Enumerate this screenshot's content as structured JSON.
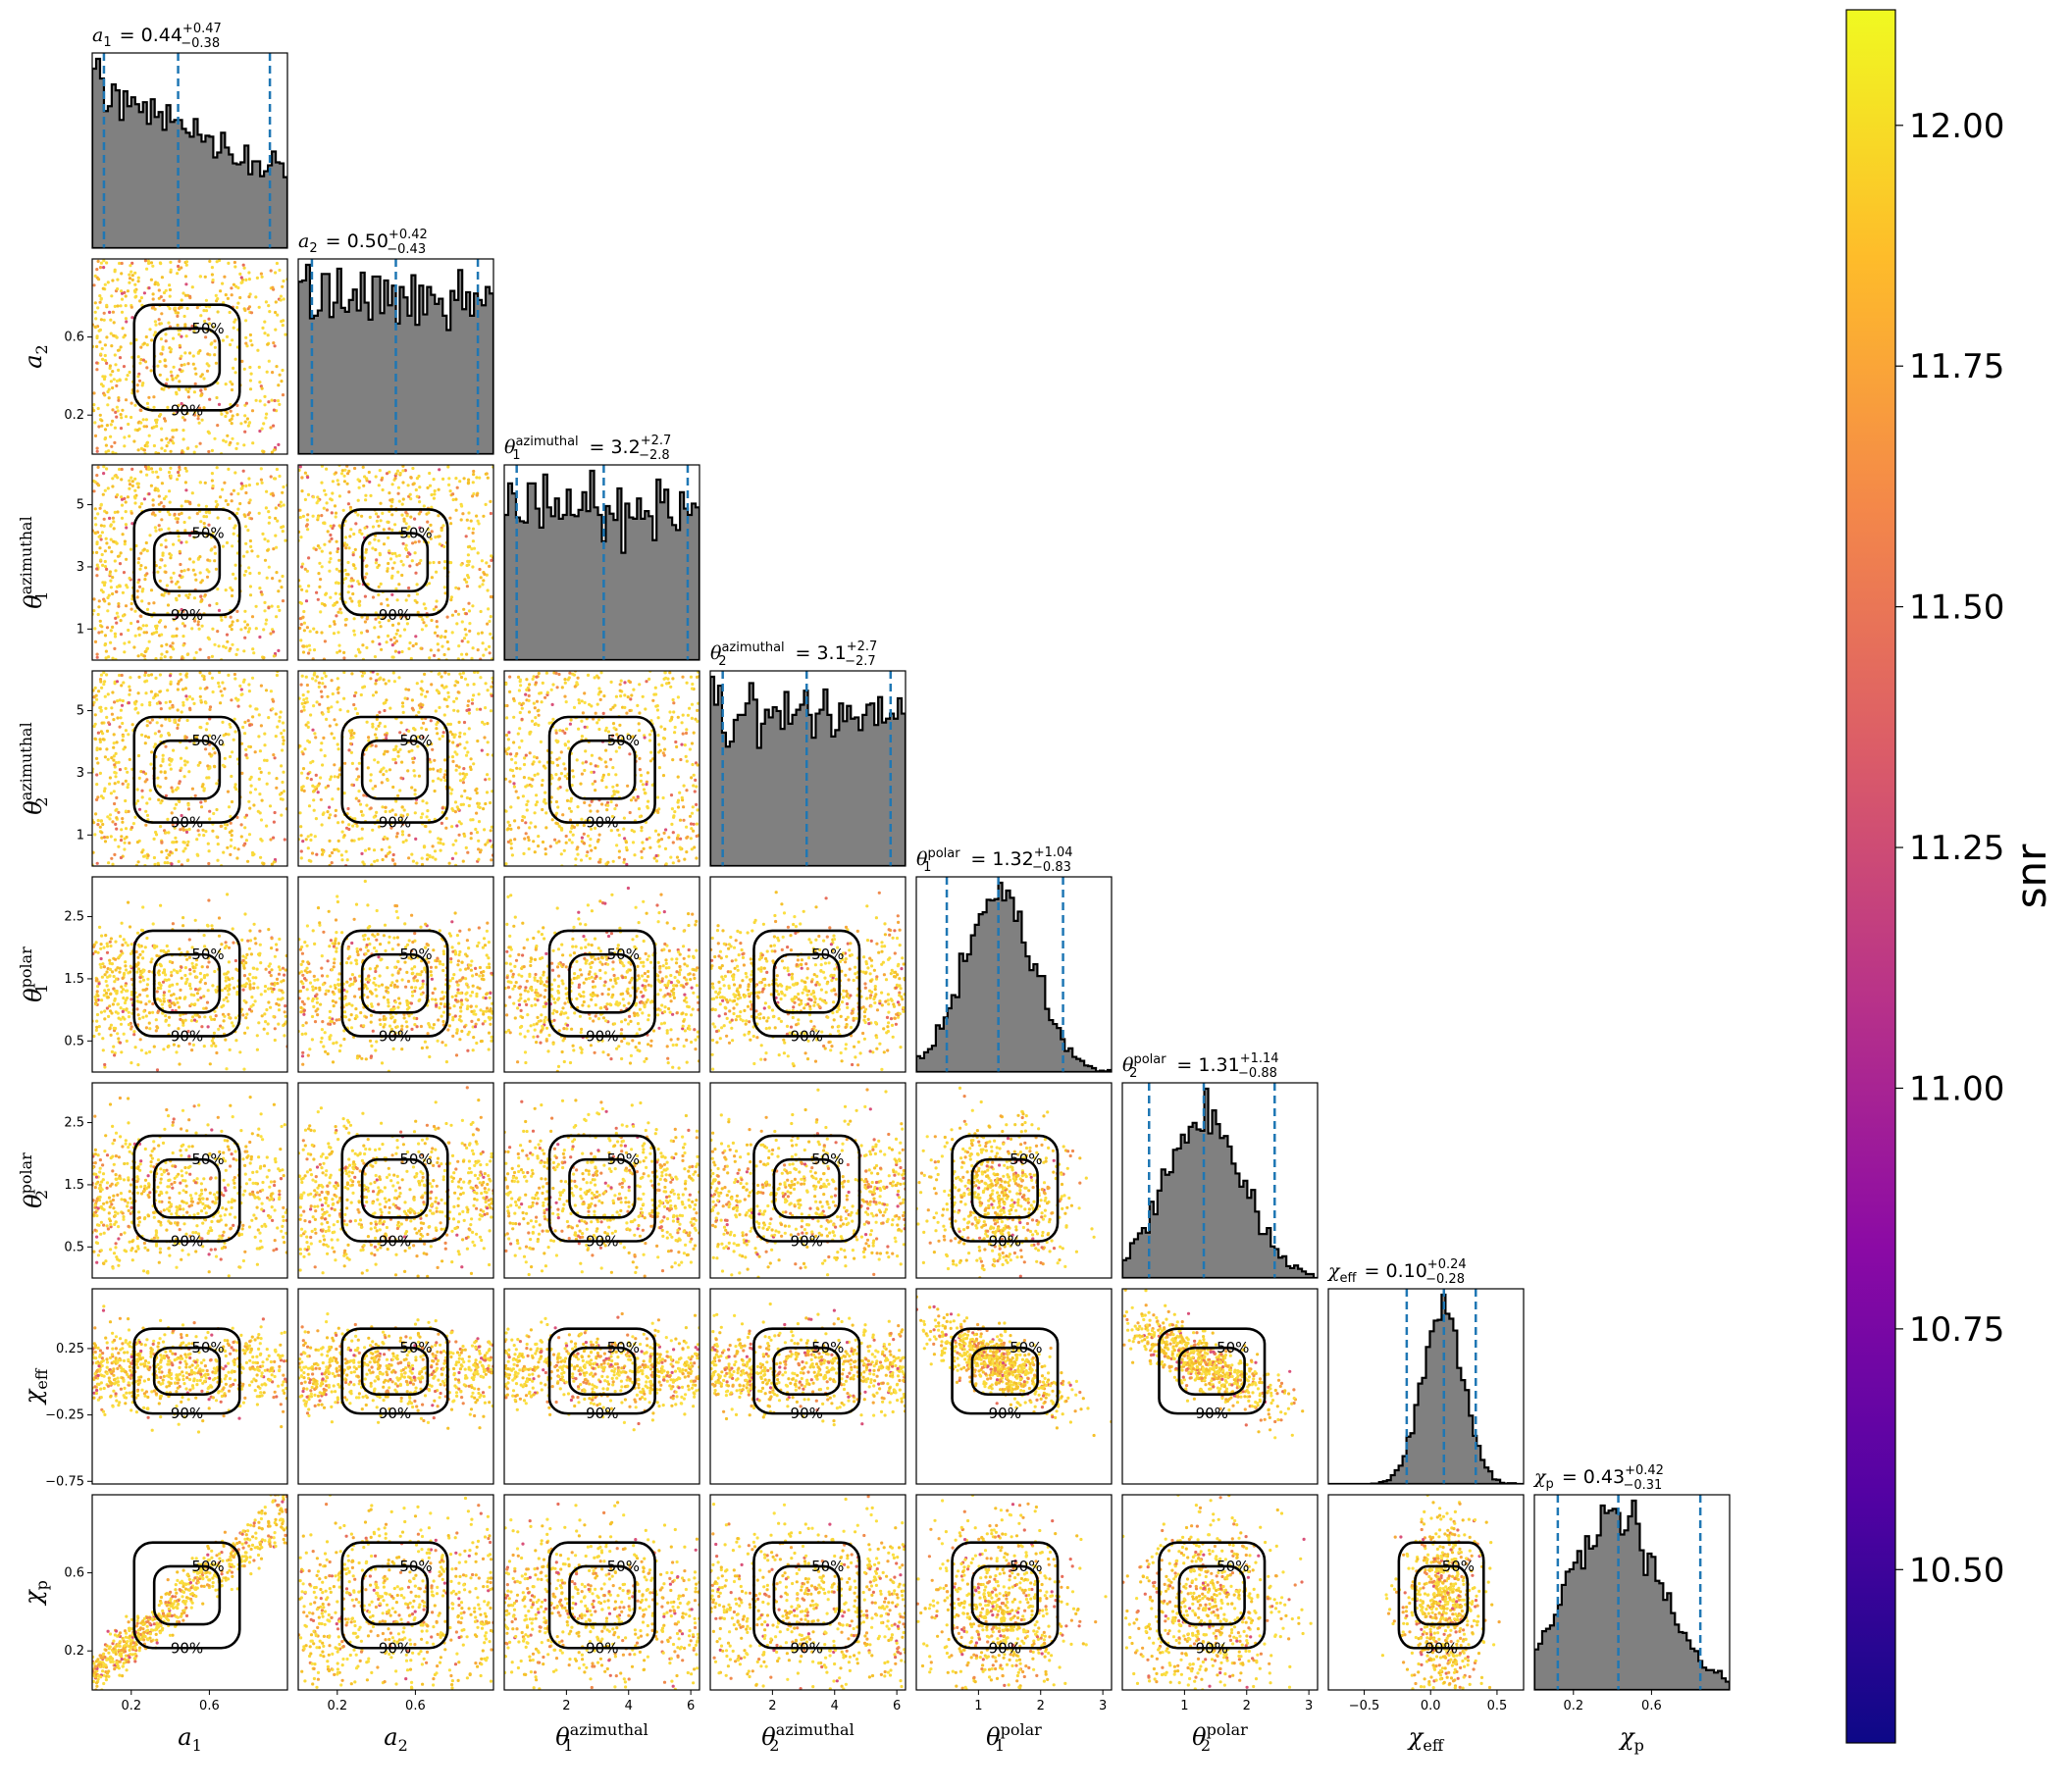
{
  "chart_data": {
    "type": "corner",
    "parameters": [
      {
        "name": "a_1",
        "label_main": "a",
        "label_sub": "1",
        "label_sup": "",
        "range": [
          0,
          1
        ],
        "ticks": [
          0.2,
          0.6
        ],
        "tick_labels": [
          "0.2",
          "0.6"
        ],
        "title_value": "0.44",
        "title_plus": "+0.47",
        "title_minus": "−0.38",
        "median": 0.44,
        "lower": 0.06,
        "upper": 0.91,
        "hist_shape": "decreasing"
      },
      {
        "name": "a_2",
        "label_main": "a",
        "label_sub": "2",
        "label_sup": "",
        "range": [
          0,
          1
        ],
        "ticks": [
          0.2,
          0.6
        ],
        "tick_labels": [
          "0.2",
          "0.6"
        ],
        "title_value": "0.50",
        "title_plus": "+0.42",
        "title_minus": "−0.43",
        "median": 0.5,
        "lower": 0.07,
        "upper": 0.92,
        "hist_shape": "flat"
      },
      {
        "name": "theta_1_azimuthal",
        "label_main": "θ",
        "label_sub": "1",
        "label_sup": "azimuthal",
        "range": [
          0,
          6.28
        ],
        "ticks": [
          1,
          3,
          5
        ],
        "tick_labels": [
          "1",
          "3",
          "5"
        ],
        "xticks": [
          2,
          4,
          6
        ],
        "xtick_labels": [
          "2",
          "4",
          "6"
        ],
        "title_value": "3.2",
        "title_plus": "+2.7",
        "title_minus": "−2.8",
        "median": 3.2,
        "lower": 0.4,
        "upper": 5.9,
        "hist_shape": "flat"
      },
      {
        "name": "theta_2_azimuthal",
        "label_main": "θ",
        "label_sub": "2",
        "label_sup": "azimuthal",
        "range": [
          0,
          6.28
        ],
        "ticks": [
          1,
          3,
          5
        ],
        "tick_labels": [
          "1",
          "3",
          "5"
        ],
        "xticks": [
          2,
          4,
          6
        ],
        "xtick_labels": [
          "2",
          "4",
          "6"
        ],
        "title_value": "3.1",
        "title_plus": "+2.7",
        "title_minus": "−2.7",
        "median": 3.1,
        "lower": 0.4,
        "upper": 5.8,
        "hist_shape": "flat"
      },
      {
        "name": "theta_1_polar",
        "label_main": "θ",
        "label_sub": "1",
        "label_sup": "polar",
        "range": [
          0,
          3.14
        ],
        "ticks": [
          0.5,
          1.5,
          2.5
        ],
        "tick_labels": [
          "0.5",
          "1.5",
          "2.5"
        ],
        "xticks": [
          1,
          2,
          3
        ],
        "xtick_labels": [
          "1",
          "2",
          "3"
        ],
        "title_value": "1.32",
        "title_plus": "+1.04",
        "title_minus": "−0.83",
        "median": 1.32,
        "lower": 0.49,
        "upper": 2.36,
        "hist_shape": "peak"
      },
      {
        "name": "theta_2_polar",
        "label_main": "θ",
        "label_sub": "2",
        "label_sup": "polar",
        "range": [
          0,
          3.14
        ],
        "ticks": [
          0.5,
          1.5,
          2.5
        ],
        "tick_labels": [
          "0.5",
          "1.5",
          "2.5"
        ],
        "xticks": [
          1,
          2,
          3
        ],
        "xtick_labels": [
          "1",
          "2",
          "3"
        ],
        "title_value": "1.31",
        "title_plus": "+1.14",
        "title_minus": "−0.88",
        "median": 1.31,
        "lower": 0.43,
        "upper": 2.45,
        "hist_shape": "broad"
      },
      {
        "name": "chi_eff",
        "label_main": "χ",
        "label_sub": "eff",
        "label_sup": "",
        "range": [
          -0.77,
          0.7
        ],
        "ticks": [
          -0.75,
          -0.25,
          0.25
        ],
        "tick_labels": [
          "−0.75",
          "−0.25",
          "0.25"
        ],
        "xticks": [
          -0.5,
          0.0,
          0.5
        ],
        "xtick_labels": [
          "−0.5",
          "0.0",
          "0.5"
        ],
        "title_value": "0.10",
        "title_plus": "+0.24",
        "title_minus": "−0.28",
        "median": 0.1,
        "lower": -0.18,
        "upper": 0.34,
        "hist_shape": "narrow"
      },
      {
        "name": "chi_p",
        "label_main": "χ",
        "label_sub": "p",
        "label_sup": "",
        "range": [
          0,
          1
        ],
        "ticks": [
          0.2,
          0.6
        ],
        "tick_labels": [
          "0.2",
          "0.6"
        ],
        "title_value": "0.43",
        "title_plus": "+0.42",
        "title_minus": "−0.31",
        "median": 0.43,
        "lower": 0.12,
        "upper": 0.85,
        "hist_shape": "skewed"
      }
    ],
    "contour_levels": [
      "50%",
      "90%"
    ],
    "colorbar": {
      "label": "snr",
      "range": [
        10.32,
        12.12
      ],
      "ticks": [
        10.5,
        10.75,
        11.0,
        11.25,
        11.5,
        11.75,
        12.0
      ],
      "tick_labels": [
        "10.50",
        "10.75",
        "11.00",
        "11.25",
        "11.50",
        "11.75",
        "12.00"
      ],
      "colormap": "plasma"
    },
    "colors": {
      "hist_fill": "#808080",
      "hist_edge": "#000000",
      "quantile_lines": "#1f77b4",
      "contour": "#000000"
    },
    "colormap_stops": [
      "#0d0887",
      "#5302a3",
      "#8b0aa5",
      "#b83289",
      "#db5c68",
      "#f48849",
      "#febc2a",
      "#f0f921"
    ]
  }
}
